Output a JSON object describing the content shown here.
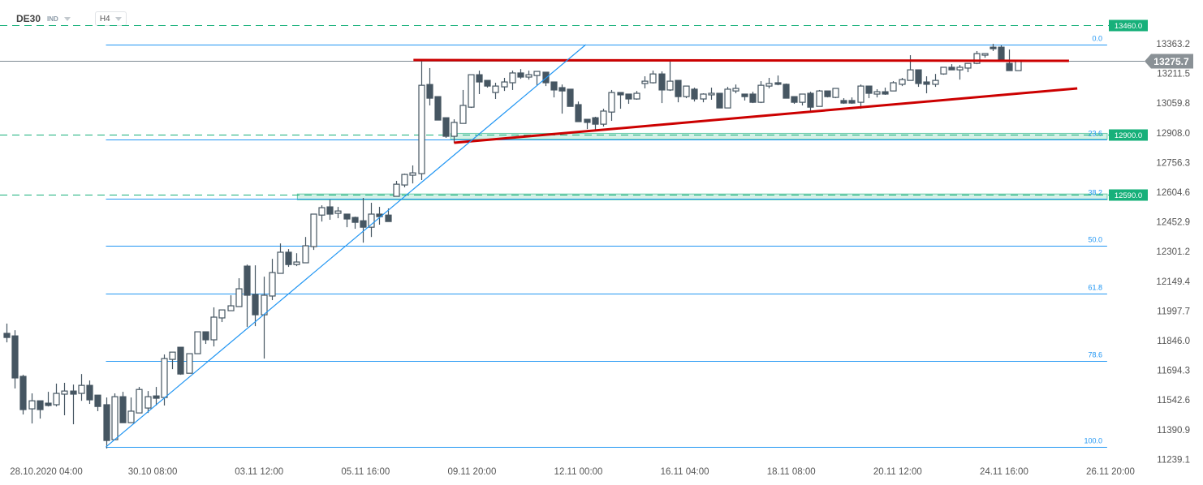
{
  "header": {
    "symbol": "DE30",
    "type": "IND",
    "timeframe": "H4"
  },
  "colors": {
    "bull_fill": "#ffffff",
    "candle": "#465662",
    "fib": "#2196f3",
    "support": "#17b07a",
    "trend_red": "#cc0000",
    "price_line": "#7e8a92",
    "price_tag": "#8a9196"
  },
  "chart_data": {
    "type": "candlestick",
    "title": "DE30 H4",
    "ylim": [
      11239.1,
      13460
    ],
    "y_ticks": [
      "13363.2",
      "13211.5",
      "13059.8",
      "12908.0",
      "12756.3",
      "12604.6",
      "12452.9",
      "12301.2",
      "12149.4",
      "11997.7",
      "11846.0",
      "11694.3",
      "11542.6",
      "11390.9",
      "11239.1"
    ],
    "x_ticks": [
      "28.10.2020  04:00",
      "30.10  08:00",
      "03.11  12:00",
      "05.11  16:00",
      "09.11  20:00",
      "12.11  00:00",
      "16.11  04:00",
      "18.11  08:00",
      "20.11  12:00",
      "24.11  16:00",
      "26.11  20:00"
    ],
    "current_price": 13275.7,
    "current_price_label": "13275.7",
    "ohlc": [
      [
        11882,
        11932,
        11836,
        11861
      ],
      [
        11869,
        11898,
        11600,
        11654
      ],
      [
        11662,
        11670,
        11467,
        11492
      ],
      [
        11496,
        11575,
        11421,
        11537
      ],
      [
        11537,
        11537,
        11446,
        11492
      ],
      [
        11525,
        11583,
        11508,
        11513
      ],
      [
        11517,
        11625,
        11508,
        11575
      ],
      [
        11571,
        11629,
        11463,
        11587
      ],
      [
        11587,
        11620,
        11417,
        11571
      ],
      [
        11575,
        11674,
        11537,
        11616
      ],
      [
        11616,
        11641,
        11521,
        11542
      ],
      [
        11566,
        11566,
        11484,
        11508
      ],
      [
        11517,
        11554,
        11293,
        11334
      ],
      [
        11338,
        11575,
        11338,
        11558
      ],
      [
        11558,
        11583,
        11425,
        11425
      ],
      [
        11425,
        11554,
        11425,
        11484
      ],
      [
        11475,
        11608,
        11475,
        11595
      ],
      [
        11500,
        11587,
        11475,
        11558
      ],
      [
        11562,
        11608,
        11513,
        11550
      ],
      [
        11554,
        11774,
        11513,
        11753
      ],
      [
        11749,
        11786,
        11699,
        11786
      ],
      [
        11811,
        11811,
        11670,
        11674
      ],
      [
        11678,
        11778,
        11678,
        11778
      ],
      [
        11778,
        11890,
        11778,
        11890
      ],
      [
        11890,
        11890,
        11828,
        11849
      ],
      [
        11849,
        12015,
        11815,
        11965
      ],
      [
        11961,
        12002,
        11940,
        12002
      ],
      [
        11998,
        12077,
        11998,
        12023
      ],
      [
        12019,
        12164,
        12019,
        12110
      ],
      [
        12226,
        12234,
        11915,
        12077
      ],
      [
        12081,
        12230,
        11919,
        11977
      ],
      [
        11977,
        12172,
        11753,
        12077
      ],
      [
        12073,
        12263,
        12052,
        12193
      ],
      [
        12189,
        12342,
        12189,
        12297
      ],
      [
        12297,
        12313,
        12222,
        12234
      ],
      [
        12234,
        12292,
        12226,
        12247
      ],
      [
        12243,
        12375,
        12243,
        12330
      ],
      [
        12326,
        12492,
        12309,
        12492
      ],
      [
        12487,
        12537,
        12454,
        12525
      ],
      [
        12529,
        12566,
        12463,
        12492
      ],
      [
        12496,
        12529,
        12471,
        12508
      ],
      [
        12492,
        12492,
        12425,
        12467
      ],
      [
        12475,
        12479,
        12417,
        12450
      ],
      [
        12458,
        12575,
        12346,
        12425
      ],
      [
        12425,
        12550,
        12375,
        12492
      ],
      [
        12492,
        12529,
        12438,
        12479
      ],
      [
        12487,
        12521,
        12454,
        12454
      ],
      [
        12583,
        12662,
        12583,
        12645
      ],
      [
        12641,
        12699,
        12629,
        12695
      ],
      [
        12691,
        12741,
        12649,
        12703
      ],
      [
        12699,
        13284,
        12666,
        13151
      ],
      [
        13155,
        13239,
        13048,
        13085
      ],
      [
        13093,
        13093,
        12973,
        12973
      ],
      [
        12985,
        12985,
        12882,
        12890
      ],
      [
        12890,
        12977,
        12857,
        12961
      ],
      [
        12956,
        13127,
        12956,
        13048
      ],
      [
        13039,
        13205,
        13035,
        13205
      ],
      [
        13205,
        13226,
        13106,
        13168
      ],
      [
        13176,
        13176,
        13139,
        13147
      ],
      [
        13114,
        13164,
        13081,
        13147
      ],
      [
        13143,
        13189,
        13122,
        13168
      ],
      [
        13164,
        13226,
        13127,
        13214
      ],
      [
        13214,
        13234,
        13184,
        13193
      ],
      [
        13193,
        13226,
        13180,
        13205
      ],
      [
        13201,
        13222,
        13151,
        13222
      ],
      [
        13218,
        13218,
        13147,
        13164
      ],
      [
        13168,
        13168,
        13089,
        13127
      ],
      [
        13139,
        13155,
        13006,
        13122
      ],
      [
        13131,
        13131,
        13043,
        13043
      ],
      [
        13052,
        13068,
        12965,
        12965
      ],
      [
        12977,
        12977,
        12927,
        12961
      ],
      [
        12985,
        12990,
        12923,
        12952
      ],
      [
        12952,
        13031,
        12940,
        13019
      ],
      [
        13014,
        13127,
        12969,
        13114
      ],
      [
        13114,
        13114,
        13031,
        13102
      ],
      [
        13106,
        13106,
        13056,
        13081
      ],
      [
        13081,
        13122,
        13077,
        13110
      ],
      [
        13160,
        13197,
        13135,
        13172
      ],
      [
        13164,
        13226,
        13160,
        13209
      ],
      [
        13209,
        13222,
        13060,
        13127
      ],
      [
        13127,
        13272,
        13122,
        13172
      ],
      [
        13176,
        13176,
        13064,
        13093
      ],
      [
        13093,
        13147,
        13085,
        13147
      ],
      [
        13131,
        13139,
        13068,
        13081
      ],
      [
        13081,
        13110,
        13064,
        13106
      ],
      [
        13102,
        13139,
        13077,
        13110
      ],
      [
        13110,
        13110,
        13035,
        13035
      ],
      [
        13035,
        13143,
        13035,
        13131
      ],
      [
        13122,
        13155,
        13110,
        13135
      ],
      [
        13106,
        13106,
        13073,
        13093
      ],
      [
        13106,
        13118,
        13060,
        13064
      ],
      [
        13064,
        13172,
        13060,
        13151
      ],
      [
        13147,
        13189,
        13135,
        13160
      ],
      [
        13164,
        13201,
        13151,
        13156
      ],
      [
        13156,
        13160,
        13085,
        13085
      ],
      [
        13093,
        13093,
        13056,
        13064
      ],
      [
        13064,
        13106,
        13048,
        13106
      ],
      [
        13110,
        13118,
        13019,
        13039
      ],
      [
        13043,
        13127,
        13043,
        13122
      ],
      [
        13122,
        13122,
        13089,
        13093
      ],
      [
        13089,
        13135,
        13085,
        13135
      ],
      [
        13073,
        13085,
        13056,
        13060
      ],
      [
        13073,
        13089,
        13056,
        13060
      ],
      [
        13064,
        13155,
        13031,
        13147
      ],
      [
        13147,
        13147,
        13085,
        13110
      ],
      [
        13106,
        13131,
        13089,
        13118
      ],
      [
        13118,
        13139,
        13102,
        13106
      ],
      [
        13122,
        13172,
        13122,
        13164
      ],
      [
        13156,
        13189,
        13147,
        13180
      ],
      [
        13176,
        13305,
        13176,
        13230
      ],
      [
        13230,
        13230,
        13143,
        13160
      ],
      [
        13168,
        13197,
        13110,
        13156
      ],
      [
        13156,
        13209,
        13143,
        13176
      ],
      [
        13209,
        13243,
        13205,
        13243
      ],
      [
        13243,
        13259,
        13230,
        13230
      ],
      [
        13230,
        13255,
        13180,
        13243
      ],
      [
        13239,
        13263,
        13218,
        13263
      ],
      [
        13263,
        13326,
        13259,
        13313
      ],
      [
        13305,
        13313,
        13292,
        13313
      ],
      [
        13346,
        13363,
        13326,
        13338
      ],
      [
        13346,
        13355,
        13276,
        13276
      ],
      [
        13263,
        13334,
        13226,
        13226
      ],
      [
        13226,
        13280,
        13226,
        13275.7
      ]
    ],
    "support_levels": [
      {
        "price": 13460.0,
        "label": "13460.0"
      },
      {
        "price": 12900.0,
        "label": "12900.0"
      },
      {
        "price": 12590.0,
        "label": "12590.0"
      }
    ],
    "support_zones": [
      {
        "from_index": 53.6,
        "low": 12875,
        "high": 12905
      },
      {
        "from_index": 35.1,
        "low": 12565,
        "high": 12595
      }
    ],
    "fibonacci": {
      "high": 13359,
      "low": 11301,
      "from_index": 12,
      "to_index": 132.8,
      "levels": [
        {
          "ratio": 0.0,
          "label": "0.0"
        },
        {
          "ratio": 0.236,
          "label": "23.6"
        },
        {
          "ratio": 0.382,
          "label": "38.2"
        },
        {
          "ratio": 0.5,
          "label": "50.0"
        },
        {
          "ratio": 0.618,
          "label": "61.8"
        },
        {
          "ratio": 0.786,
          "label": "78.6"
        },
        {
          "ratio": 1.0,
          "label": "100.0"
        }
      ]
    },
    "trendlines": [
      {
        "name": "resistance-line",
        "color": "trend_red",
        "p1": [
          49.1,
          13280
        ],
        "p2": [
          128.2,
          13276
        ]
      },
      {
        "name": "rising-support-line",
        "color": "trend_red",
        "p1": [
          54.0,
          12857
        ],
        "p2": [
          129.2,
          13135
        ]
      },
      {
        "name": "uptrend-line",
        "color": "fib",
        "p1": [
          12,
          11301
        ],
        "p2": [
          69.9,
          13359
        ]
      }
    ]
  }
}
